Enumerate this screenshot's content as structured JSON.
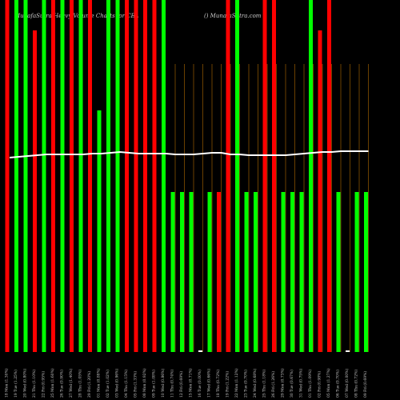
{
  "chart_data": {
    "type": "bar",
    "title": "MunafaSutra Heavy Volume Charts for CBL",
    "subtitle": "() MunafaSutra.com",
    "categories": [
      "18 Mon (1.30%)",
      "19 Tue (1.25%)",
      "20 Wed (0.80%)",
      "21 Thu (1.10%)",
      "22 Fri (0.95%)",
      "25 Mon (1.60%)",
      "26 Tue (0.90%)",
      "27 Wed (1.40%)",
      "28 Thu (1.05%)",
      "29 Fri (1.20%)",
      "01 Mon (0.88%)",
      "02 Tue (1.02%)",
      "03 Wed (0.96%)",
      "04 Thu (1.15%)",
      "05 Fri (1.33%)",
      "08 Mon (0.92%)",
      "09 Tue (1.08%)",
      "10 Wed (0.86%)",
      "11 Thu (0.74%)",
      "12 Fri (0.69%)",
      "15 Mon (0.71%)",
      "16 Tue (0.00%)",
      "17 Wed (0.66%)",
      "18 Thu (0.72%)",
      "19 Fri (1.22%)",
      "22 Mon (1.12%)",
      "23 Tue (0.70%)",
      "24 Wed (0.68%)",
      "25 Thu (1.18%)",
      "26 Fri (1.26%)",
      "29 Mon (0.73%)",
      "30 Tue (0.67%)",
      "31 Wed (0.75%)",
      "01 Thu (1.09%)",
      "02 Fri (0.98%)",
      "05 Mon (1.27%)",
      "06 Tue (0.70%)",
      "07 Wed (0.00%)",
      "08 Thu (0.72%)",
      "09 Fri (0.69%)"
    ],
    "ylim": [
      0,
      440
    ],
    "series": [
      {
        "name": "Volume",
        "colors": [
          "#ff0000",
          "#00ff00",
          "#00ff00",
          "#ff0000",
          "#00ff00",
          "#ff0000",
          "#00ff00",
          "#ff0000",
          "#00ff00",
          "#ff0000",
          "#00ff00",
          "#00ff00",
          "#00ff00",
          "#ff0000",
          "#ff0000",
          "#ff0000",
          "#ff0000",
          "#00ff00",
          "#00ff00",
          "#00ff00",
          "#00ff00",
          "#ffffff",
          "#00ff00",
          "#ff0000",
          "#ff0000",
          "#00ff00",
          "#00ff00",
          "#00ff00",
          "#ff0000",
          "#ff0000",
          "#00ff00",
          "#00ff00",
          "#00ff00",
          "#00ff00",
          "#ff0000",
          "#ff0000",
          "#00ff00",
          "#ffffff",
          "#00ff00",
          "#00ff00"
        ],
        "values": [
          440,
          440,
          440,
          402,
          440,
          440,
          440,
          440,
          440,
          440,
          302,
          440,
          440,
          440,
          440,
          440,
          440,
          440,
          200,
          200,
          200,
          2,
          200,
          200,
          440,
          440,
          200,
          200,
          440,
          440,
          200,
          200,
          200,
          440,
          402,
          440,
          200,
          2,
          200,
          200
        ]
      },
      {
        "name": "Price",
        "color": "#ffffff",
        "axis": "y2",
        "values": [
          243,
          244,
          245,
          246,
          247,
          247,
          247,
          247,
          247,
          248,
          248,
          249,
          250,
          249,
          248,
          248,
          248,
          248,
          247,
          247,
          247,
          248,
          249,
          249,
          247,
          247,
          246,
          246,
          246,
          246,
          246,
          247,
          248,
          249,
          250,
          250,
          251,
          251,
          251,
          251
        ]
      }
    ],
    "y2lim": [
      0,
      440
    ]
  }
}
